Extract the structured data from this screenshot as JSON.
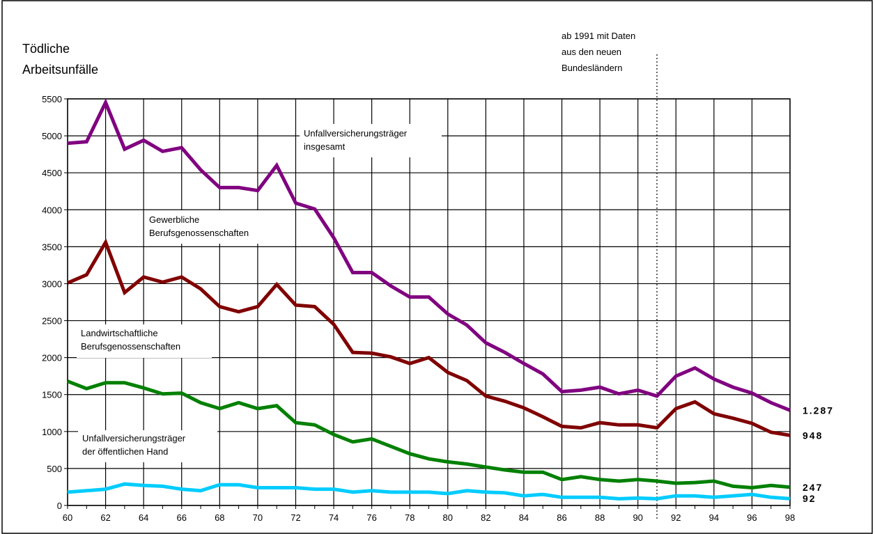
{
  "chart_data": {
    "type": "line",
    "y_title_lines": [
      "Tödliche",
      "Arbeitsunfälle"
    ],
    "ylim": [
      0,
      5500
    ],
    "yticks": [
      0,
      500,
      1000,
      1500,
      2000,
      2500,
      3000,
      3500,
      4000,
      4500,
      5000,
      5500
    ],
    "xlim": [
      60,
      98
    ],
    "xtick_labels": [
      "60",
      "62",
      "64",
      "66",
      "68",
      "70",
      "72",
      "74",
      "76",
      "78",
      "80",
      "82",
      "84",
      "86",
      "88",
      "90",
      "92",
      "94",
      "96",
      "98"
    ],
    "grid": true,
    "x": [
      60,
      61,
      62,
      63,
      64,
      65,
      66,
      67,
      68,
      69,
      70,
      71,
      72,
      73,
      74,
      75,
      76,
      77,
      78,
      79,
      80,
      81,
      82,
      83,
      84,
      85,
      86,
      87,
      88,
      89,
      90,
      91,
      92,
      93,
      94,
      95,
      96,
      97,
      98
    ],
    "series": [
      {
        "name": "Unfallversicherungsträger insgesamt",
        "color": "#800080",
        "values": [
          4900,
          4920,
          5450,
          4820,
          4940,
          4790,
          4840,
          4540,
          4300,
          4300,
          4260,
          4600,
          4090,
          4010,
          3620,
          3150,
          3150,
          2970,
          2820,
          2820,
          2590,
          2440,
          2200,
          2070,
          1920,
          1780,
          1540,
          1560,
          1600,
          1510,
          1560,
          1480,
          1750,
          1860,
          1710,
          1600,
          1520,
          1390,
          1287
        ],
        "end_label": "1.287"
      },
      {
        "name": "Gewerbliche Berufsgenossenschaften",
        "color": "#800000",
        "values": [
          3010,
          3120,
          3560,
          2880,
          3090,
          3020,
          3090,
          2930,
          2690,
          2620,
          2690,
          2990,
          2710,
          2690,
          2450,
          2070,
          2060,
          2010,
          1920,
          2000,
          1800,
          1690,
          1480,
          1410,
          1320,
          1200,
          1070,
          1050,
          1120,
          1090,
          1090,
          1050,
          1310,
          1400,
          1240,
          1180,
          1110,
          990,
          948
        ],
        "end_label": "948"
      },
      {
        "name": "Landwirtschaftliche Berufsgenossenschaften",
        "color": "#008000",
        "values": [
          1680,
          1580,
          1660,
          1660,
          1590,
          1510,
          1520,
          1390,
          1310,
          1390,
          1310,
          1350,
          1120,
          1090,
          960,
          860,
          900,
          800,
          700,
          630,
          590,
          560,
          520,
          480,
          450,
          450,
          350,
          390,
          350,
          330,
          350,
          330,
          300,
          310,
          330,
          260,
          240,
          270,
          247
        ],
        "end_label": "247"
      },
      {
        "name": "Unfallversicherungsträger der öffentlichen Hand",
        "color": "#00CCFF",
        "values": [
          180,
          200,
          220,
          290,
          270,
          260,
          220,
          200,
          280,
          280,
          240,
          240,
          240,
          220,
          220,
          180,
          200,
          180,
          180,
          180,
          160,
          200,
          180,
          170,
          130,
          150,
          110,
          110,
          110,
          90,
          100,
          90,
          130,
          130,
          110,
          130,
          150,
          110,
          92
        ],
        "end_label": "92"
      }
    ],
    "annotations": {
      "insgesamt": [
        "Unfallversicherungsträger",
        "insgesamt"
      ],
      "gewerblich": [
        "Gewerbliche",
        "Berufsgenossenschaften"
      ],
      "landwirtschaft": [
        "Landwirtschaftliche",
        "Berufsgenossenschaften"
      ],
      "oeffentlich": [
        "Unfallversicherungsträger",
        "der öffentlichen Hand"
      ],
      "neue_laender": [
        "ab 1991 mit Daten",
        "aus den neuen",
        "Bundesländern"
      ]
    }
  }
}
